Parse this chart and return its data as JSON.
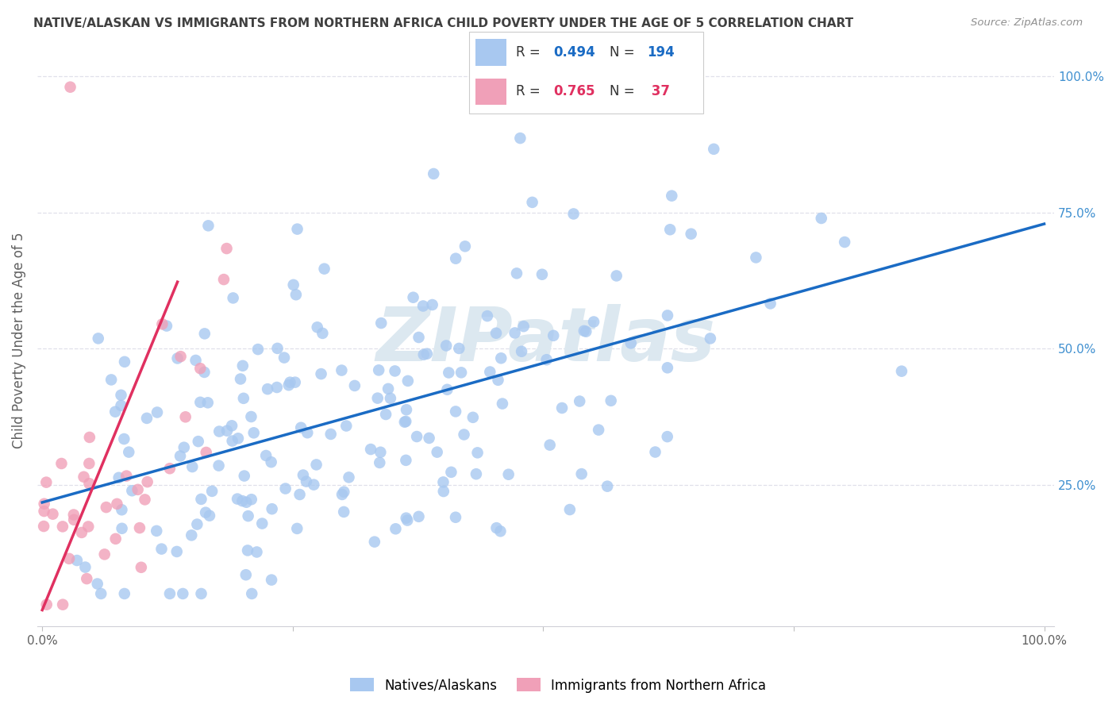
{
  "title": "NATIVE/ALASKAN VS IMMIGRANTS FROM NORTHERN AFRICA CHILD POVERTY UNDER THE AGE OF 5 CORRELATION CHART",
  "source": "Source: ZipAtlas.com",
  "ylabel": "Child Poverty Under the Age of 5",
  "legend_label1": "Natives/Alaskans",
  "legend_label2": "Immigrants from Northern Africa",
  "R1": 0.494,
  "N1": 194,
  "R2": 0.765,
  "N2": 37,
  "color1": "#a8c8f0",
  "color2": "#f0a0b8",
  "line1_color": "#1a6bc4",
  "line2_color": "#e03060",
  "line_dash_color": "#c0c0cc",
  "watermark": "ZIPatlas",
  "watermark_color": "#dce8f0",
  "bg_color": "#ffffff",
  "grid_color": "#e0e0ea",
  "title_color": "#404040",
  "axis_label_color": "#606060",
  "tick_color_right": "#4090d0",
  "seed1": 42,
  "seed2": 7
}
